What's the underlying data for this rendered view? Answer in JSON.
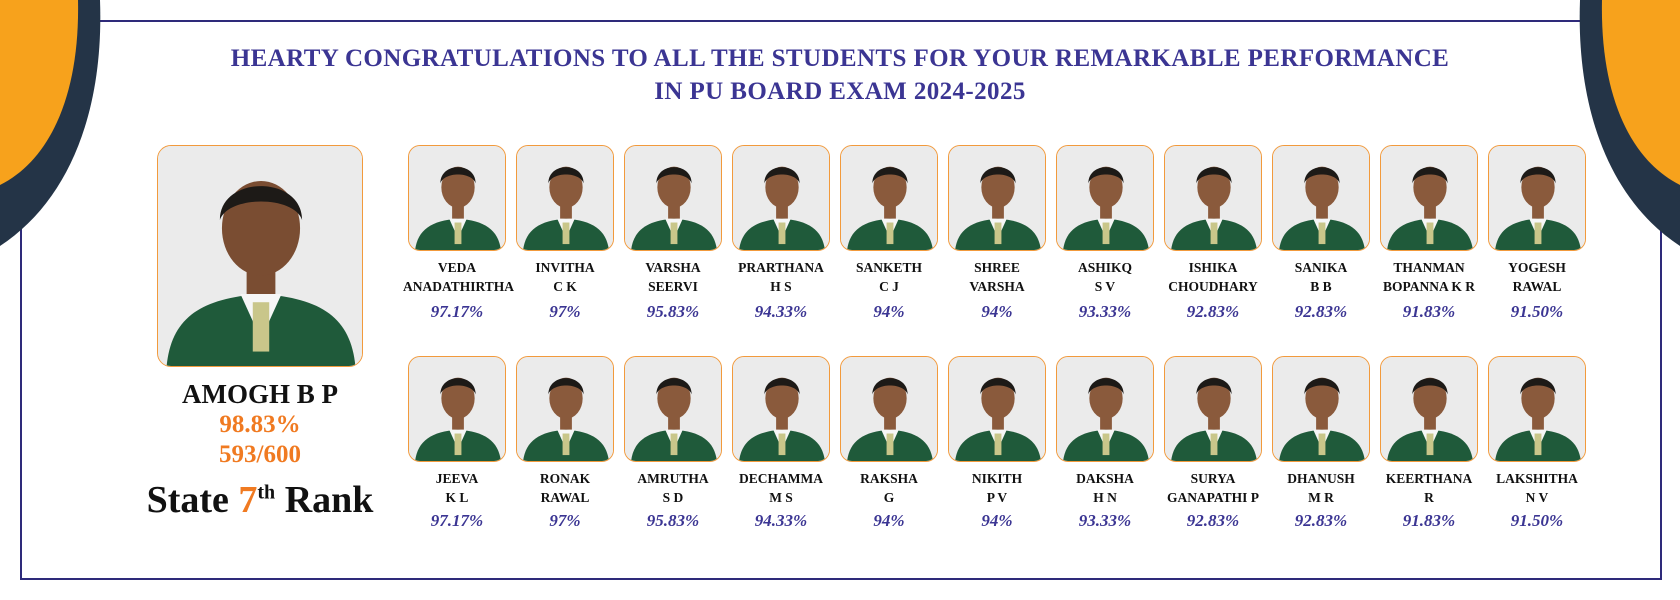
{
  "headline": {
    "line1": "HEARTY CONGRATULATIONS TO ALL THE STUDENTS FOR YOUR REMARKABLE PERFORMANCE",
    "line2": "IN PU BOARD EXAM 2024-2025"
  },
  "topper": {
    "name": "AMOGH B P",
    "percentage": "98.83%",
    "score": "593/600",
    "rank_prefix": "State",
    "rank_number": "7",
    "rank_suffix": "th",
    "rank_word": "Rank"
  },
  "students_row1": [
    {
      "line1": "VEDA",
      "line2": "ANADATHIRTHA",
      "pct": "97.17%"
    },
    {
      "line1": "INVITHA",
      "line2": "C K",
      "pct": "97%"
    },
    {
      "line1": "VARSHA",
      "line2": "SEERVI",
      "pct": "95.83%"
    },
    {
      "line1": "PRARTHANA",
      "line2": "H S",
      "pct": "94.33%"
    },
    {
      "line1": "SANKETH",
      "line2": "C J",
      "pct": "94%"
    },
    {
      "line1": "SHREE",
      "line2": "VARSHA",
      "pct": "94%"
    },
    {
      "line1": "ASHIKQ",
      "line2": "S V",
      "pct": "93.33%"
    },
    {
      "line1": "ISHIKA",
      "line2": "CHOUDHARY",
      "pct": "92.83%"
    },
    {
      "line1": "SANIKA",
      "line2": "B B",
      "pct": "92.83%"
    },
    {
      "line1": "THANMAN",
      "line2": "BOPANNA K R",
      "pct": "91.83%"
    },
    {
      "line1": "YOGESH",
      "line2": "RAWAL",
      "pct": "91.50%"
    }
  ],
  "students_row2": [
    {
      "line1": "JEEVA",
      "line2": "K L",
      "pct": "97.17%"
    },
    {
      "line1": "RONAK",
      "line2": "RAWAL",
      "pct": "97%"
    },
    {
      "line1": "AMRUTHA",
      "line2": "S D",
      "pct": "95.83%"
    },
    {
      "line1": "DECHAMMA",
      "line2": "M S",
      "pct": "94.33%"
    },
    {
      "line1": "RAKSHA",
      "line2": "G",
      "pct": "94%"
    },
    {
      "line1": "NIKITH",
      "line2": "P V",
      "pct": "94%"
    },
    {
      "line1": "DAKSHA",
      "line2": "H N",
      "pct": "93.33%"
    },
    {
      "line1": "SURYA",
      "line2": "GANAPATHI P",
      "pct": "92.83%"
    },
    {
      "line1": "DHANUSH",
      "line2": "M R",
      "pct": "92.83%"
    },
    {
      "line1": "KEERTHANA",
      "line2": "R",
      "pct": "91.83%"
    },
    {
      "line1": "LAKSHITHA",
      "line2": "N V",
      "pct": "91.50%"
    }
  ],
  "colors": {
    "navy": "#3b3593",
    "orange": "#f07a21",
    "blazer": "#1f5a3a",
    "corner_dark": "#243447",
    "corner_orange": "#f7a21c"
  }
}
